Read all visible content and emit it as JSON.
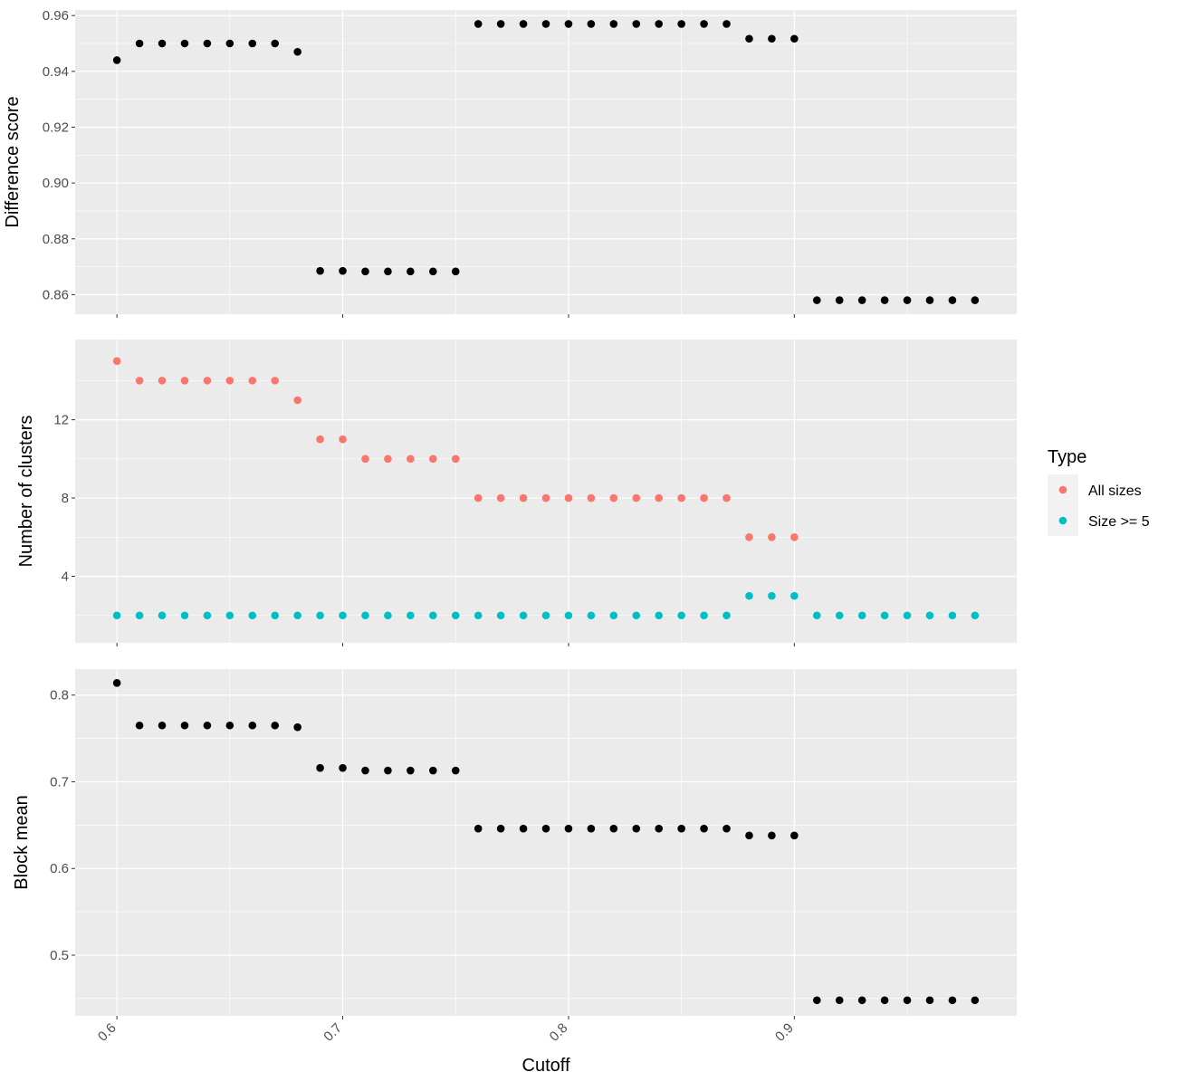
{
  "chart_data": [
    {
      "type": "scatter",
      "panel": "top",
      "ylabel": "Difference score",
      "ylim": [
        0.853,
        0.962
      ],
      "yticks": [
        0.86,
        0.88,
        0.9,
        0.92,
        0.94,
        0.96
      ],
      "ytick_labels": [
        "0.86",
        "0.88",
        "0.90",
        "0.92",
        "0.94",
        "0.96"
      ],
      "grid": true,
      "color": "#000000",
      "x": [
        0.6,
        0.61,
        0.62,
        0.63,
        0.64,
        0.65,
        0.66,
        0.67,
        0.68,
        0.69,
        0.7,
        0.71,
        0.72,
        0.73,
        0.74,
        0.75,
        0.76,
        0.77,
        0.78,
        0.79,
        0.8,
        0.81,
        0.82,
        0.83,
        0.84,
        0.85,
        0.86,
        0.87,
        0.88,
        0.89,
        0.9,
        0.91,
        0.92,
        0.93,
        0.94,
        0.95,
        0.96,
        0.97,
        0.98
      ],
      "y": [
        0.944,
        0.95,
        0.95,
        0.95,
        0.95,
        0.95,
        0.95,
        0.95,
        0.947,
        0.8685,
        0.8685,
        0.8683,
        0.8683,
        0.8683,
        0.8683,
        0.8683,
        0.957,
        0.957,
        0.957,
        0.957,
        0.957,
        0.957,
        0.957,
        0.957,
        0.957,
        0.957,
        0.957,
        0.957,
        0.9517,
        0.9517,
        0.9517,
        0.858,
        0.858,
        0.858,
        0.858,
        0.858,
        0.858,
        0.858,
        0.858
      ]
    },
    {
      "type": "scatter",
      "panel": "middle",
      "ylabel": "Number of clusters",
      "ylim": [
        0.6,
        16.1
      ],
      "yticks": [
        4,
        8,
        12
      ],
      "ytick_labels": [
        "4",
        "8",
        "12"
      ],
      "grid": true,
      "series": [
        {
          "name": "All sizes",
          "color": "#F8766D",
          "x": [
            0.6,
            0.61,
            0.62,
            0.63,
            0.64,
            0.65,
            0.66,
            0.67,
            0.68,
            0.69,
            0.7,
            0.71,
            0.72,
            0.73,
            0.74,
            0.75,
            0.76,
            0.77,
            0.78,
            0.79,
            0.8,
            0.81,
            0.82,
            0.83,
            0.84,
            0.85,
            0.86,
            0.87,
            0.88,
            0.89,
            0.9
          ],
          "y": [
            15,
            14,
            14,
            14,
            14,
            14,
            14,
            14,
            13,
            11,
            11,
            10,
            10,
            10,
            10,
            10,
            8,
            8,
            8,
            8,
            8,
            8,
            8,
            8,
            8,
            8,
            8,
            8,
            6,
            6,
            6
          ]
        },
        {
          "name": "Size >= 5",
          "color": "#00BFC4",
          "x": [
            0.6,
            0.61,
            0.62,
            0.63,
            0.64,
            0.65,
            0.66,
            0.67,
            0.68,
            0.69,
            0.7,
            0.71,
            0.72,
            0.73,
            0.74,
            0.75,
            0.76,
            0.77,
            0.78,
            0.79,
            0.8,
            0.81,
            0.82,
            0.83,
            0.84,
            0.85,
            0.86,
            0.87,
            0.88,
            0.89,
            0.9,
            0.91,
            0.92,
            0.93,
            0.94,
            0.95,
            0.96,
            0.97,
            0.98
          ],
          "y": [
            2,
            2,
            2,
            2,
            2,
            2,
            2,
            2,
            2,
            2,
            2,
            2,
            2,
            2,
            2,
            2,
            2,
            2,
            2,
            2,
            2,
            2,
            2,
            2,
            2,
            2,
            2,
            2,
            3,
            3,
            3,
            2,
            2,
            2,
            2,
            2,
            2,
            2,
            2
          ]
        }
      ]
    },
    {
      "type": "scatter",
      "panel": "bottom",
      "ylabel": "Block mean",
      "xlabel": "Cutoff",
      "ylim": [
        0.43,
        0.83
      ],
      "yticks": [
        0.5,
        0.6,
        0.7,
        0.8
      ],
      "ytick_labels": [
        "0.5",
        "0.6",
        "0.7",
        "0.8"
      ],
      "grid": true,
      "color": "#000000",
      "x": [
        0.6,
        0.61,
        0.62,
        0.63,
        0.64,
        0.65,
        0.66,
        0.67,
        0.68,
        0.69,
        0.7,
        0.71,
        0.72,
        0.73,
        0.74,
        0.75,
        0.76,
        0.77,
        0.78,
        0.79,
        0.8,
        0.81,
        0.82,
        0.83,
        0.84,
        0.85,
        0.86,
        0.87,
        0.88,
        0.89,
        0.9,
        0.91,
        0.92,
        0.93,
        0.94,
        0.95,
        0.96,
        0.97,
        0.98
      ],
      "y": [
        0.814,
        0.765,
        0.765,
        0.765,
        0.765,
        0.765,
        0.765,
        0.765,
        0.763,
        0.716,
        0.716,
        0.713,
        0.713,
        0.713,
        0.713,
        0.713,
        0.646,
        0.646,
        0.646,
        0.646,
        0.646,
        0.646,
        0.646,
        0.646,
        0.646,
        0.646,
        0.646,
        0.646,
        0.638,
        0.638,
        0.638,
        0.448,
        0.448,
        0.448,
        0.448,
        0.448,
        0.448,
        0.448,
        0.448
      ]
    }
  ],
  "x_axis": {
    "xlim": [
      0.5815,
      0.9985
    ],
    "xticks": [
      0.6,
      0.7,
      0.8,
      0.9
    ],
    "xtick_labels": [
      "0.6",
      "0.7",
      "0.8",
      "0.9"
    ],
    "xlabel": "Cutoff"
  },
  "legend": {
    "title": "Type",
    "placement": "right",
    "items": [
      {
        "label": "All sizes",
        "color": "#F8766D"
      },
      {
        "label": "Size >= 5",
        "color": "#00BFC4"
      }
    ]
  },
  "colors": {
    "panel_bg": "#EBEBEB",
    "grid": "#FFFFFF",
    "point": "#000000"
  }
}
